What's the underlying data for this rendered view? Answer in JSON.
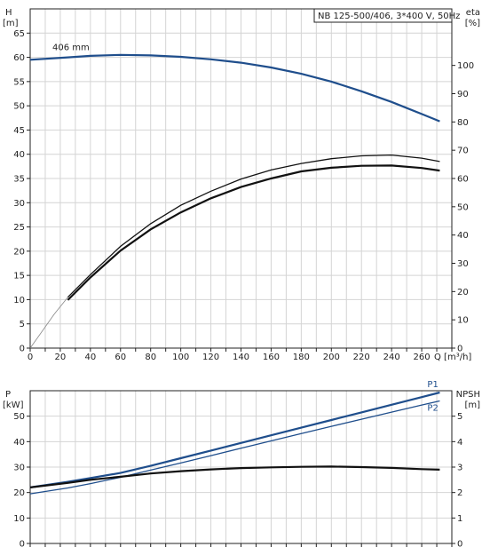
{
  "chart_data": [
    {
      "type": "line",
      "title": "NB 125-500/406, 3*400 V, 50Hz",
      "ylabel": "H",
      "ylabel_unit": "[m]",
      "y2label": "eta",
      "y2label_unit": "[%]",
      "xlabel": "Q [m³/h]",
      "xlim": [
        0,
        280
      ],
      "ylim": [
        0,
        70
      ],
      "y2lim": [
        0,
        120
      ],
      "x_ticks": [
        0,
        20,
        40,
        60,
        80,
        100,
        120,
        140,
        160,
        180,
        200,
        220,
        240,
        260
      ],
      "y_ticks": [
        0,
        5,
        10,
        15,
        20,
        25,
        30,
        35,
        40,
        45,
        50,
        55,
        60,
        65
      ],
      "y2_ticks": [
        0,
        10,
        20,
        30,
        40,
        50,
        60,
        70,
        80,
        90,
        100
      ],
      "grid": true,
      "annotation": "406 mm",
      "series": [
        {
          "name": "H",
          "axis": "left",
          "color": "#1f4e8c",
          "x": [
            0,
            25,
            40,
            60,
            80,
            100,
            120,
            140,
            160,
            180,
            200,
            220,
            240,
            260,
            272
          ],
          "y": [
            59.5,
            60.0,
            60.3,
            60.5,
            60.4,
            60.1,
            59.6,
            58.9,
            57.9,
            56.6,
            55.0,
            53.0,
            50.8,
            48.3,
            46.8
          ]
        },
        {
          "name": "eta_upper",
          "axis": "right",
          "color": "#111111",
          "x": [
            25,
            40,
            60,
            80,
            100,
            120,
            140,
            160,
            180,
            200,
            220,
            240,
            260,
            272
          ],
          "y": [
            18.0,
            26.0,
            36.0,
            44.0,
            50.5,
            55.5,
            59.8,
            63.0,
            65.3,
            67.0,
            68.0,
            68.3,
            67.2,
            66.0
          ]
        },
        {
          "name": "eta",
          "axis": "right",
          "color": "#111111",
          "x": [
            25,
            40,
            60,
            80,
            100,
            120,
            140,
            160,
            180,
            200,
            220,
            240,
            260,
            272
          ],
          "y": [
            17.0,
            25.0,
            34.5,
            42.0,
            48.0,
            53.0,
            57.0,
            60.0,
            62.5,
            63.8,
            64.5,
            64.6,
            63.7,
            62.8
          ]
        },
        {
          "name": "eta_extension",
          "axis": "right",
          "color": "#888888",
          "x": [
            0,
            8,
            16,
            25
          ],
          "y": [
            0,
            6,
            12,
            18
          ]
        }
      ]
    },
    {
      "type": "line",
      "ylabel": "P",
      "ylabel_unit": "[kW]",
      "y2label": "NPSH",
      "y2label_unit": "[m]",
      "xlim": [
        0,
        280
      ],
      "ylim": [
        0,
        60
      ],
      "y2lim": [
        0,
        6
      ],
      "y_ticks": [
        0,
        10,
        20,
        30,
        40,
        50
      ],
      "y2_ticks": [
        0,
        1,
        2,
        3,
        4,
        5
      ],
      "grid": true,
      "series": [
        {
          "name": "P1",
          "axis": "left",
          "color": "#1f4e8c",
          "label": "P1",
          "x": [
            0,
            25,
            40,
            60,
            80,
            100,
            120,
            140,
            160,
            180,
            200,
            220,
            240,
            260,
            272
          ],
          "y": [
            22.0,
            24.2,
            25.7,
            27.7,
            30.5,
            33.5,
            36.5,
            39.5,
            42.5,
            45.5,
            48.5,
            51.5,
            54.5,
            57.5,
            59.3
          ]
        },
        {
          "name": "P2",
          "axis": "left",
          "color": "#1f4e8c",
          "label": "P2",
          "x": [
            0,
            25,
            40,
            60,
            80,
            100,
            120,
            140,
            160,
            180,
            200,
            220,
            240,
            260,
            272
          ],
          "y": [
            19.5,
            21.8,
            23.5,
            26.0,
            28.8,
            31.6,
            34.5,
            37.4,
            40.3,
            43.2,
            46.0,
            48.8,
            51.6,
            54.4,
            56.0
          ]
        },
        {
          "name": "NPSH",
          "axis": "right",
          "color": "#111111",
          "x": [
            0,
            25,
            40,
            60,
            80,
            100,
            120,
            140,
            160,
            180,
            200,
            220,
            240,
            260,
            272
          ],
          "y": [
            2.2,
            2.38,
            2.5,
            2.62,
            2.75,
            2.84,
            2.91,
            2.96,
            2.99,
            3.01,
            3.02,
            3.0,
            2.97,
            2.92,
            2.9
          ]
        }
      ]
    }
  ]
}
